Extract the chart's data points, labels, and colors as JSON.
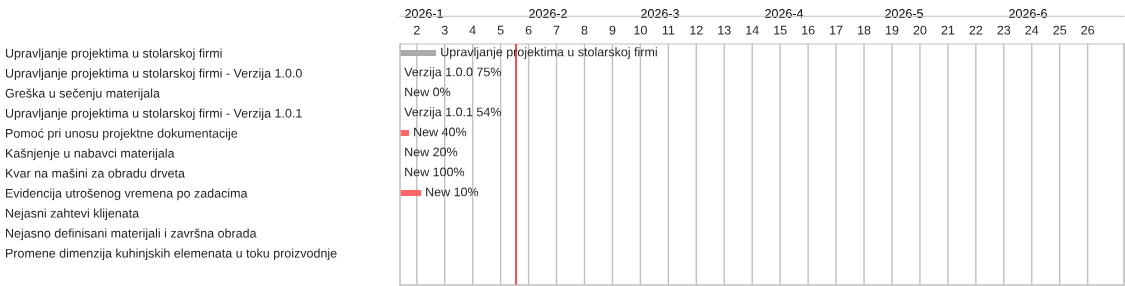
{
  "chart_data": {
    "type": "bar",
    "orientation": "horizontal",
    "categories": [
      "Upravljanje projektima u stolarskoj firmi",
      "Upravljanje projektima u stolarskoj firmi - Verzija 1.0.0",
      "Greška u sečenju materijala",
      "Upravljanje projektima u stolarskoj firmi - Verzija 1.0.1",
      "Pomoć pri unosu projektne dokumentacije",
      "Kašnjenje u nabavci materijala",
      "Kvar na mašini za obradu drveta",
      "Evidencija utrošenog vremena po zadacima",
      "Nejasni zahtevi klijenata",
      "Nejasno definisani materijali i završna obrada",
      "Promene dimenzija kuhinjskih elemenata u toku proizvodnje"
    ],
    "values": [
      1.29,
      null,
      null,
      null,
      0.32,
      null,
      null,
      0.75,
      null,
      null,
      null
    ],
    "base": [
      1.4,
      null,
      null,
      null,
      1.4,
      null,
      null,
      1.4,
      null,
      null,
      null
    ],
    "colors": [
      "#aaaaaa",
      null,
      null,
      null,
      "#ff6666",
      null,
      null,
      "#ff6666",
      null,
      null,
      null
    ],
    "value_labels": [
      "Upravljanje projektima u stolarskoj firmi",
      "Verzija 1.0.0 75%",
      "New 0%",
      "Verzija 1.0.1 54%",
      "New 40%",
      "New 20%",
      "New 100%",
      "New 10%",
      null,
      null,
      null
    ],
    "xlim": [
      1.4,
      27.3
    ],
    "xticks": [
      2,
      3,
      4,
      5,
      6,
      7,
      8,
      9,
      10,
      11,
      12,
      13,
      14,
      15,
      16,
      17,
      18,
      19,
      20,
      21,
      22,
      23,
      24,
      25,
      26
    ],
    "x2lim": [
      "2026-01-01",
      "2026-07-01"
    ],
    "x2ticks": [
      {
        "value": "2026-01-07",
        "label": "2026-1"
      },
      {
        "value": "2026-02-07",
        "label": "2026-2"
      },
      {
        "value": "2026-03-07",
        "label": "2026-3"
      },
      {
        "value": "2026-04-07",
        "label": "2026-4"
      },
      {
        "value": "2026-05-07",
        "label": "2026-5"
      },
      {
        "value": "2026-06-07",
        "label": "2026-6"
      }
    ],
    "grid": "x",
    "ref_lines": [
      {
        "axis": "x",
        "value": 5.55,
        "color": "#ff0000"
      }
    ]
  }
}
